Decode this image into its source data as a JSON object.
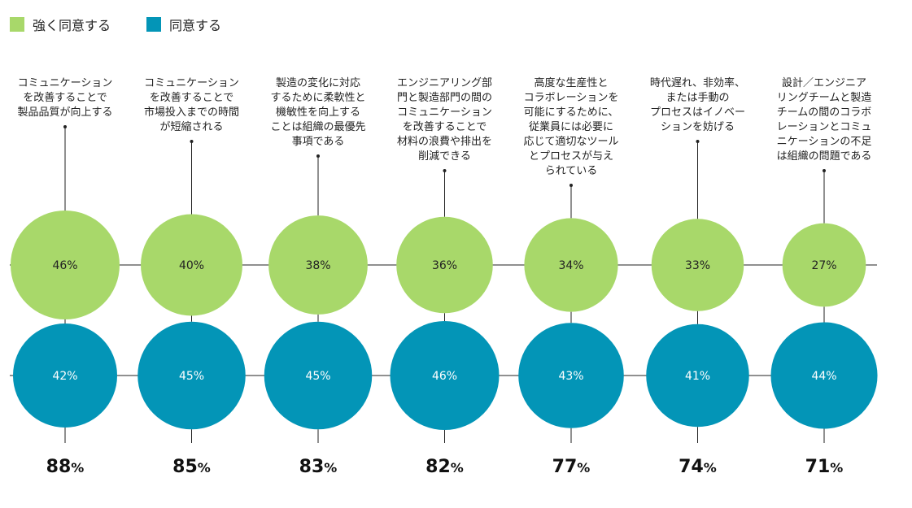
{
  "colors": {
    "strongly_agree": "#a8d86a",
    "agree": "#0395b7",
    "line": "#222222"
  },
  "legend": [
    {
      "label": "強く同意する",
      "color": "#a8d86a"
    },
    {
      "label": "同意する",
      "color": "#0395b7"
    }
  ],
  "chart_data": {
    "type": "bubble",
    "categories": [
      "コミュニケーション\nを改善することで\n製品品質が向上する",
      "コミュニケーション\nを改善することで\n市場投入までの時間\nが短縮される",
      "製造の変化に対応\nするために柔軟性と\n機敏性を向上する\nことは組織の最優先\n事項である",
      "エンジニアリング部\n門と製造部門の間の\nコミュニケーション\nを改善することで\n材料の浪費や排出を\n削減できる",
      "高度な生産性と\nコラボレーションを\n可能にするために、\n従業員には必要に\n応じて適切なツール\nとプロセスが与え\nられている",
      "時代遅れ、非効率、\nまたは手動の\nプロセスはイノベー\nションを妨げる",
      "設計／エンジニア\nリングチームと製造\nチームの間のコラボ\nレーションとコミュ\nニケーションの不足\nは組織の問題である"
    ],
    "series": [
      {
        "name": "強く同意する",
        "values": [
          46,
          40,
          38,
          36,
          34,
          33,
          27
        ],
        "labels": [
          "46%",
          "40%",
          "38%",
          "36%",
          "34%",
          "33%",
          "27%"
        ]
      },
      {
        "name": "同意する",
        "values": [
          42,
          45,
          45,
          46,
          43,
          41,
          44
        ],
        "labels": [
          "42%",
          "45%",
          "45%",
          "46%",
          "43%",
          "41%",
          "44%"
        ]
      }
    ],
    "totals": [
      88,
      85,
      83,
      82,
      77,
      74,
      71
    ],
    "unit": "%"
  }
}
